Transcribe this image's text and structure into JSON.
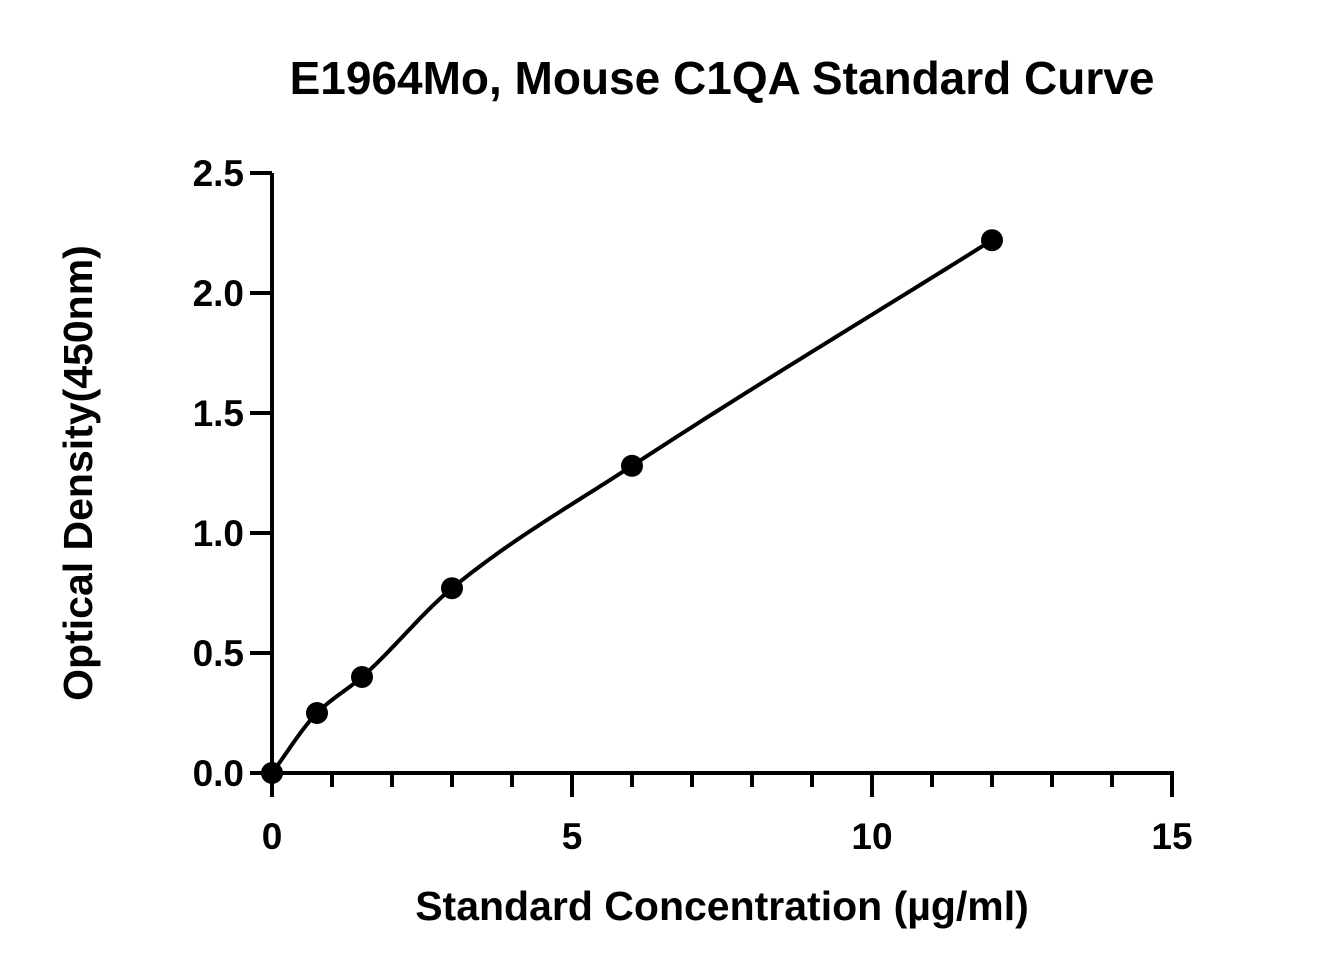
{
  "chart_data": {
    "type": "scatter",
    "title": "E1964Mo, Mouse C1QA Standard Curve",
    "xlabel": "Standard Concentration (µg/ml)",
    "ylabel": "Optical Density(450nm)",
    "xlim": [
      0,
      15
    ],
    "ylim": [
      0,
      2.5
    ],
    "x_ticks": [
      "0",
      "5",
      "10",
      "15"
    ],
    "y_ticks": [
      "0.0",
      "0.5",
      "1.0",
      "1.5",
      "2.0",
      "2.5"
    ],
    "grid": false,
    "legend": "none",
    "series": [
      {
        "x": [
          0,
          0.75,
          1.5,
          3,
          6,
          12
        ],
        "y": [
          0.0,
          0.25,
          0.4,
          0.77,
          1.28,
          2.22
        ],
        "fit_line": "smooth curve",
        "color": "#000000"
      }
    ]
  }
}
